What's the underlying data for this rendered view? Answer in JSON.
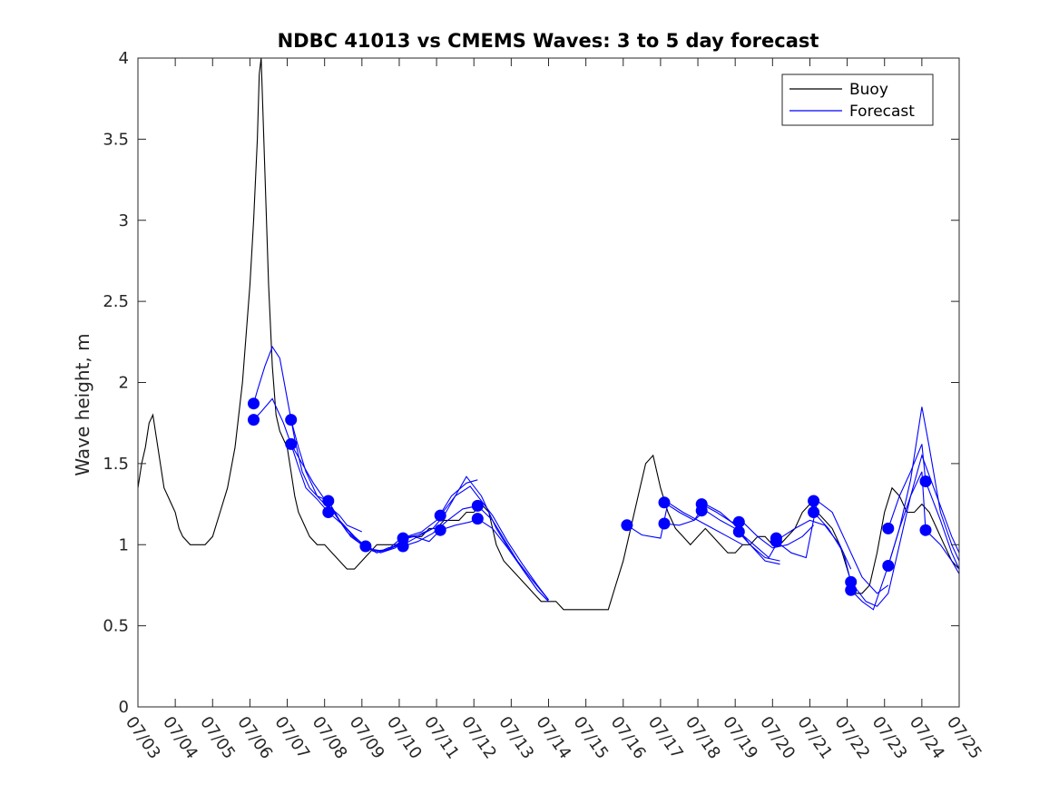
{
  "chart_data": {
    "type": "line",
    "title": "NDBC 41013 vs CMEMS Waves: 3 to 5 day forecast",
    "xlabel": "",
    "ylabel": "Wave height, m",
    "xlim_days": [
      3,
      25
    ],
    "ylim": [
      0,
      4
    ],
    "x_ticks": [
      "07/03",
      "07/04",
      "07/05",
      "07/06",
      "07/07",
      "07/08",
      "07/09",
      "07/10",
      "07/11",
      "07/12",
      "07/13",
      "07/14",
      "07/15",
      "07/16",
      "07/17",
      "07/18",
      "07/19",
      "07/20",
      "07/21",
      "07/22",
      "07/23",
      "07/24",
      "07/25"
    ],
    "y_ticks": [
      "0",
      "0.5",
      "1",
      "1.5",
      "2",
      "2.5",
      "3",
      "3.5",
      "4"
    ],
    "grid": false,
    "legend": {
      "position": "top-right",
      "entries": [
        "Buoy",
        "Forecast"
      ]
    },
    "colors": {
      "buoy": "#000000",
      "forecast": "#0000FF",
      "axes": "#262626"
    },
    "series": [
      {
        "name": "Buoy",
        "x": [
          3.0,
          3.1,
          3.2,
          3.3,
          3.4,
          3.5,
          3.6,
          3.7,
          3.8,
          3.9,
          4.0,
          4.1,
          4.2,
          4.4,
          4.6,
          4.8,
          5.0,
          5.2,
          5.4,
          5.6,
          5.8,
          6.0,
          6.1,
          6.2,
          6.25,
          6.3,
          6.4,
          6.5,
          6.6,
          6.7,
          6.8,
          6.9,
          7.0,
          7.1,
          7.2,
          7.3,
          7.4,
          7.5,
          7.6,
          7.8,
          8.0,
          8.2,
          8.4,
          8.6,
          8.8,
          9.0,
          9.2,
          9.4,
          9.6,
          9.8,
          10.0,
          10.2,
          10.4,
          10.6,
          10.8,
          11.0,
          11.2,
          11.4,
          11.6,
          11.8,
          12.0,
          12.2,
          12.4,
          12.6,
          12.8,
          13.0,
          13.2,
          13.4,
          13.6,
          13.8,
          14.0,
          14.2,
          14.4,
          14.6,
          14.8,
          15.0,
          15.2,
          15.4,
          15.6,
          15.8,
          16.0,
          16.2,
          16.4,
          16.6,
          16.8,
          17.0,
          17.2,
          17.4,
          17.6,
          17.8,
          18.0,
          18.2,
          18.4,
          18.6,
          18.8,
          19.0,
          19.2,
          19.4,
          19.6,
          19.8,
          20.0,
          20.2,
          20.4,
          20.6,
          20.8,
          21.0,
          21.2,
          21.4,
          21.6,
          21.8,
          22.0,
          22.2,
          22.4,
          22.6,
          22.8,
          23.0,
          23.2,
          23.4,
          23.6,
          23.8,
          24.0,
          24.2,
          24.4,
          24.6,
          24.8,
          25.0
        ],
        "values": [
          1.35,
          1.5,
          1.6,
          1.75,
          1.8,
          1.65,
          1.5,
          1.35,
          1.3,
          1.25,
          1.2,
          1.1,
          1.05,
          1.0,
          1.0,
          1.0,
          1.05,
          1.2,
          1.35,
          1.6,
          2.0,
          2.6,
          3.0,
          3.5,
          3.9,
          4.0,
          3.3,
          2.6,
          2.1,
          1.8,
          1.7,
          1.65,
          1.6,
          1.45,
          1.3,
          1.2,
          1.15,
          1.1,
          1.05,
          1.0,
          1.0,
          0.95,
          0.9,
          0.85,
          0.85,
          0.9,
          0.95,
          1.0,
          1.0,
          1.0,
          1.0,
          1.05,
          1.05,
          1.05,
          1.1,
          1.1,
          1.15,
          1.15,
          1.15,
          1.2,
          1.2,
          1.25,
          1.2,
          1.0,
          0.9,
          0.85,
          0.8,
          0.75,
          0.7,
          0.65,
          0.65,
          0.65,
          0.6,
          0.6,
          0.6,
          0.6,
          0.6,
          0.6,
          0.6,
          0.75,
          0.9,
          1.1,
          1.3,
          1.5,
          1.55,
          1.35,
          1.2,
          1.1,
          1.05,
          1.0,
          1.05,
          1.1,
          1.05,
          1.0,
          0.95,
          0.95,
          1.0,
          1.0,
          1.05,
          1.05,
          1.0,
          1.0,
          1.05,
          1.1,
          1.2,
          1.25,
          1.2,
          1.15,
          1.1,
          1.0,
          0.85,
          0.7,
          0.7,
          0.75,
          0.95,
          1.2,
          1.35,
          1.3,
          1.2,
          1.2,
          1.25,
          1.2,
          1.1,
          1.0,
          0.9,
          0.85
        ]
      },
      {
        "name": "Forecast",
        "segments": [
          {
            "x": [
              6.1,
              6.2,
              6.4,
              6.6,
              6.8,
              7.0,
              7.2,
              7.4,
              7.6,
              7.8,
              8.0,
              8.2,
              8.4,
              8.6,
              8.8,
              9.0
            ],
            "values": [
              1.87,
              1.95,
              2.1,
              2.22,
              2.15,
              1.9,
              1.65,
              1.45,
              1.35,
              1.3,
              1.25,
              1.22,
              1.18,
              1.12,
              1.1,
              1.08
            ]
          },
          {
            "x": [
              6.1,
              6.3,
              6.6,
              6.9,
              7.1,
              7.3,
              7.5,
              7.8,
              8.1
            ],
            "values": [
              1.77,
              1.82,
              1.9,
              1.75,
              1.62,
              1.48,
              1.35,
              1.28,
              1.2
            ]
          },
          {
            "x": [
              7.1,
              7.3,
              7.5,
              7.8,
              8.1,
              8.4,
              8.7,
              9.0,
              9.3,
              9.6,
              10.0
            ],
            "values": [
              1.77,
              1.6,
              1.45,
              1.3,
              1.27,
              1.15,
              1.05,
              1.0,
              0.97,
              0.96,
              1.0
            ]
          },
          {
            "x": [
              7.1,
              7.4,
              7.7,
              8.0,
              8.3,
              8.6,
              9.0,
              9.4,
              9.8,
              10.1
            ],
            "values": [
              1.62,
              1.5,
              1.38,
              1.28,
              1.18,
              1.08,
              1.0,
              0.95,
              0.98,
              1.03
            ]
          },
          {
            "x": [
              8.1,
              8.4,
              8.8,
              9.1,
              9.4,
              9.7,
              10.1,
              10.5,
              10.9,
              11.2
            ],
            "values": [
              1.27,
              1.15,
              1.05,
              0.99,
              0.95,
              0.98,
              1.0,
              1.05,
              1.1,
              1.1
            ]
          },
          {
            "x": [
              8.1,
              8.5,
              8.9,
              9.3,
              9.7,
              10.0,
              10.4,
              10.8,
              11.1
            ],
            "values": [
              1.2,
              1.12,
              1.02,
              0.96,
              0.97,
              1.03,
              1.05,
              1.02,
              1.09
            ]
          },
          {
            "x": [
              9.1,
              9.5,
              9.9,
              10.2,
              10.6,
              11.0,
              11.4,
              11.8,
              12.1
            ],
            "values": [
              0.99,
              0.95,
              0.98,
              1.05,
              1.08,
              1.15,
              1.3,
              1.38,
              1.4
            ]
          },
          {
            "x": [
              10.1,
              10.5,
              10.9,
              11.2,
              11.5,
              11.8,
              12.2,
              12.6,
              13.0,
              13.5,
              14.0
            ],
            "values": [
              1.04,
              1.06,
              1.1,
              1.18,
              1.3,
              1.42,
              1.3,
              1.1,
              0.95,
              0.8,
              0.66
            ]
          },
          {
            "x": [
              10.1,
              10.5,
              10.9,
              11.3,
              11.7,
              12.1,
              12.5,
              12.9,
              13.3,
              13.7,
              14.0
            ],
            "values": [
              0.99,
              1.02,
              1.07,
              1.15,
              1.22,
              1.24,
              1.15,
              1.0,
              0.85,
              0.72,
              0.65
            ]
          },
          {
            "x": [
              11.1,
              11.5,
              11.9,
              12.1,
              12.5,
              12.9,
              13.3,
              13.7,
              14.0
            ],
            "values": [
              1.18,
              1.3,
              1.36,
              1.3,
              1.18,
              1.02,
              0.88,
              0.75,
              0.66
            ]
          },
          {
            "x": [
              11.1,
              11.5,
              11.9,
              12.1,
              12.5,
              12.9,
              13.3,
              13.7,
              14.0
            ],
            "values": [
              1.09,
              1.12,
              1.14,
              1.16,
              1.1,
              0.98,
              0.85,
              0.72,
              0.65
            ]
          },
          {
            "x": [
              16.1,
              16.5,
              17.0,
              17.2,
              17.6,
              18.0,
              18.4,
              18.8,
              19.2
            ],
            "values": [
              1.12,
              1.06,
              1.04,
              1.26,
              1.2,
              1.15,
              1.1,
              1.05,
              1.0
            ]
          },
          {
            "x": [
              17.1,
              17.5,
              17.9,
              18.2,
              18.6,
              19.0,
              19.4,
              19.8,
              20.2
            ],
            "values": [
              1.26,
              1.2,
              1.15,
              1.25,
              1.2,
              1.12,
              1.0,
              0.9,
              0.88
            ]
          },
          {
            "x": [
              17.1,
              17.5,
              17.9,
              18.2,
              18.6,
              19.0,
              19.4,
              19.8,
              20.2
            ],
            "values": [
              1.13,
              1.12,
              1.15,
              1.21,
              1.15,
              1.1,
              1.0,
              0.92,
              0.9
            ]
          },
          {
            "x": [
              18.1,
              18.5,
              18.9,
              19.2,
              19.6,
              20.0,
              20.4,
              20.8,
              21.1
            ],
            "values": [
              1.25,
              1.2,
              1.14,
              1.14,
              1.05,
              0.98,
              1.0,
              1.05,
              1.12
            ]
          },
          {
            "x": [
              19.1,
              19.5,
              19.9,
              20.2,
              20.6,
              21.0,
              21.4,
              21.8,
              22.1
            ],
            "values": [
              1.08,
              1.0,
              0.92,
              1.04,
              1.1,
              1.15,
              1.12,
              1.0,
              0.85
            ]
          },
          {
            "x": [
              20.1,
              20.5,
              20.9,
              21.2,
              21.6,
              22.0,
              22.4,
              22.8,
              23.1
            ],
            "values": [
              1.02,
              0.95,
              0.92,
              1.27,
              1.2,
              1.0,
              0.8,
              0.7,
              0.75
            ]
          },
          {
            "x": [
              21.1,
              21.5,
              21.9,
              22.1,
              22.5,
              22.8,
              23.1,
              23.4,
              23.7,
              24.0,
              24.4,
              24.8,
              25.0
            ],
            "values": [
              1.2,
              1.1,
              0.95,
              0.77,
              0.65,
              0.62,
              0.7,
              1.0,
              1.3,
              1.55,
              1.3,
              1.05,
              0.95
            ]
          },
          {
            "x": [
              22.1,
              22.4,
              22.7,
              23.1,
              23.4,
              23.7,
              24.0,
              24.2,
              24.5,
              24.8,
              25.0
            ],
            "values": [
              0.72,
              0.65,
              0.6,
              0.87,
              1.1,
              1.4,
              1.85,
              1.6,
              1.2,
              1.0,
              0.9
            ]
          },
          {
            "x": [
              23.1,
              23.4,
              23.7,
              24.0,
              24.1,
              24.5,
              24.8,
              25.0
            ],
            "values": [
              1.1,
              1.3,
              1.45,
              1.62,
              1.39,
              1.15,
              0.95,
              0.85
            ]
          },
          {
            "x": [
              23.1,
              23.4,
              23.7,
              24.0,
              24.1,
              24.5,
              24.8,
              25.0
            ],
            "values": [
              0.87,
              1.1,
              1.3,
              1.45,
              1.09,
              1.0,
              0.9,
              0.82
            ]
          }
        ],
        "markers": {
          "x": [
            6.1,
            6.1,
            7.1,
            7.1,
            8.1,
            8.1,
            9.1,
            10.1,
            10.1,
            11.1,
            11.1,
            12.1,
            12.1,
            16.1,
            17.1,
            17.1,
            18.1,
            18.1,
            19.1,
            19.1,
            20.1,
            20.1,
            21.1,
            21.1,
            22.1,
            22.1,
            23.1,
            23.1,
            24.1,
            24.1
          ],
          "values": [
            1.87,
            1.77,
            1.77,
            1.62,
            1.27,
            1.2,
            0.99,
            1.04,
            0.99,
            1.18,
            1.09,
            1.24,
            1.16,
            1.12,
            1.26,
            1.13,
            1.25,
            1.21,
            1.14,
            1.08,
            1.04,
            1.02,
            1.27,
            1.2,
            0.77,
            0.72,
            1.1,
            0.87,
            1.39,
            1.09
          ]
        }
      }
    ]
  }
}
